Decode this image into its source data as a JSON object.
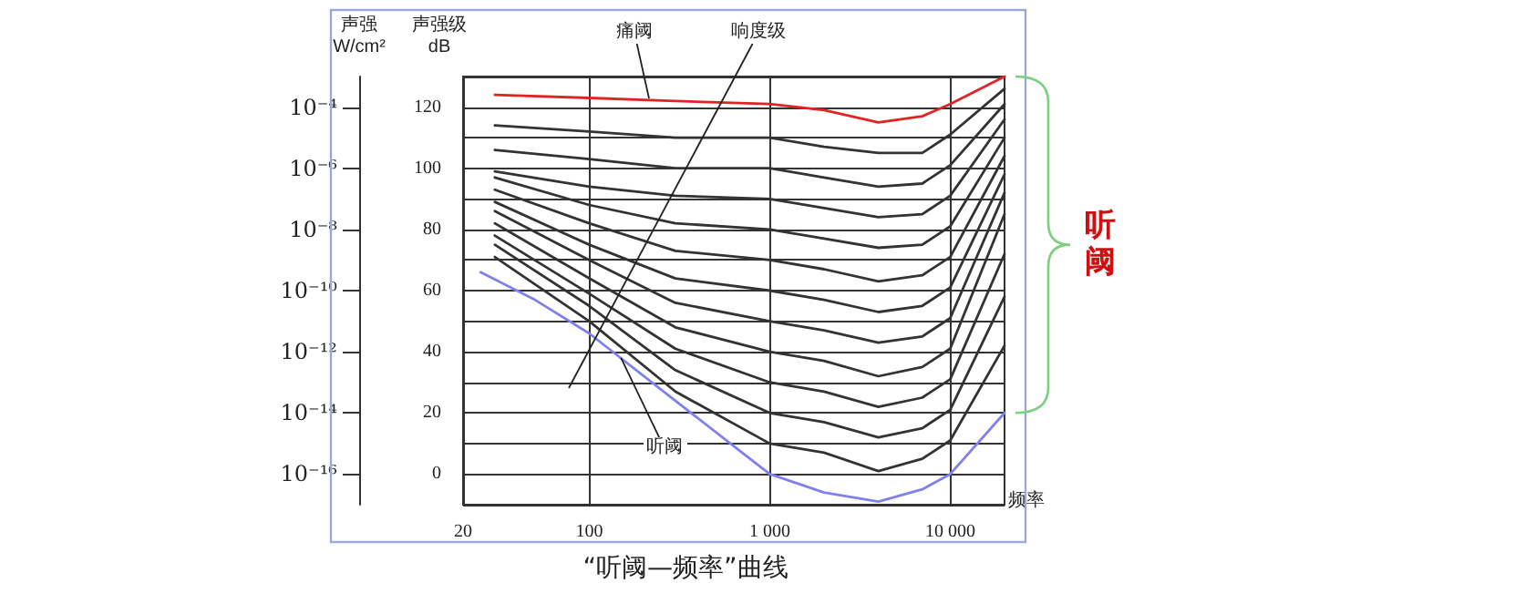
{
  "chart_data": {
    "type": "line",
    "title": "“听阈—频率”曲线",
    "xlabel": "频率",
    "ylabel": "声强级\ndB",
    "y2label": "声强\nW/cm²",
    "x": [
      30,
      100,
      300,
      1000,
      2000,
      4000,
      7000,
      10000,
      20000
    ],
    "series": [
      {
        "color": "#e02424",
        "values": [
          124,
          123,
          122,
          121,
          119,
          115,
          117,
          121,
          130
        ]
      },
      {
        "color": "#333333",
        "values": [
          114,
          112,
          110,
          110,
          107,
          105,
          105,
          111,
          126
        ]
      },
      {
        "color": "#333333",
        "values": [
          106,
          103,
          100,
          100,
          97,
          94,
          95,
          101,
          121
        ]
      },
      {
        "color": "#333333",
        "values": [
          99,
          94,
          91,
          90,
          87,
          84,
          85,
          91,
          116
        ]
      },
      {
        "color": "#333333",
        "values": [
          97,
          88,
          82,
          80,
          77,
          74,
          75,
          81,
          110
        ]
      },
      {
        "color": "#333333",
        "values": [
          93,
          82,
          73,
          70,
          67,
          63,
          65,
          71,
          104
        ]
      },
      {
        "color": "#333333",
        "values": [
          89,
          75,
          64,
          60,
          57,
          53,
          55,
          61,
          98
        ]
      },
      {
        "color": "#333333",
        "values": [
          86,
          70,
          56,
          50,
          47,
          43,
          45,
          51,
          92
        ]
      },
      {
        "color": "#333333",
        "values": [
          82,
          64,
          48,
          40,
          37,
          32,
          35,
          41,
          85
        ]
      },
      {
        "color": "#333333",
        "values": [
          78,
          59,
          41,
          30,
          27,
          22,
          25,
          31,
          72
        ]
      },
      {
        "color": "#333333",
        "values": [
          75,
          55,
          34,
          20,
          17,
          12,
          15,
          21,
          58
        ]
      },
      {
        "color": "#333333",
        "values": [
          71,
          50,
          27,
          10,
          7,
          1,
          5,
          11,
          42
        ]
      },
      {
        "color": "#8080ee",
        "x": [
          25,
          50,
          100,
          300,
          1000,
          2000,
          4000,
          7000,
          10000,
          20000
        ],
        "values": [
          66,
          57,
          46,
          24,
          0,
          -6,
          -9,
          -5,
          0,
          20
        ]
      }
    ],
    "xlim": [
      20,
      20000
    ],
    "xticks": [
      {
        "value": 20,
        "label": "20"
      },
      {
        "value": 100,
        "label": "100"
      },
      {
        "value": 1000,
        "label": "1 000"
      },
      {
        "value": 10000,
        "label": "10 000"
      }
    ],
    "ylim": [
      -10,
      130
    ],
    "yticks": [
      {
        "value": -10,
        "label": null
      },
      0,
      {
        "value": 10,
        "label": null
      },
      20,
      {
        "value": 30,
        "label": null
      },
      40,
      {
        "value": 50,
        "label": null
      },
      60,
      {
        "value": 70,
        "label": null
      },
      80,
      {
        "value": 90,
        "label": null
      },
      100,
      {
        "value": 110,
        "label": null
      },
      120,
      {
        "value": 130,
        "label": null
      }
    ],
    "log": "x",
    "grid": true,
    "marker": "none",
    "line_style": "solid",
    "annotations": [
      "10⁻¹⁶",
      "10⁻¹⁴",
      "10⁻¹²",
      "10⁻¹⁰",
      "10⁻⁸",
      "10⁻⁶",
      "10⁻⁴",
      "痛阈",
      "响度级",
      {
        "text": "听阈",
        "x": 150,
        "y": 38
      },
      "听阈"
    ]
  }
}
